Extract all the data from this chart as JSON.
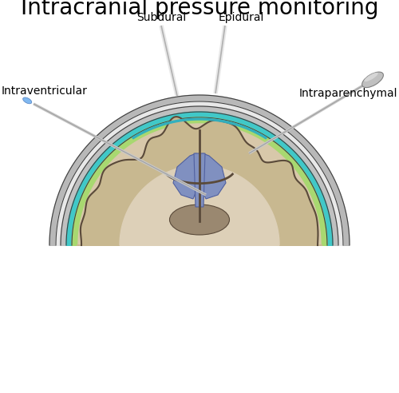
{
  "title": "Intracranial pressure monitoring",
  "title_fontsize": 20,
  "background_color": "#ffffff",
  "labels": {
    "subdural": "Subdural",
    "epidural": "Epidural",
    "intraventricular": "Intraventricular",
    "intraparenchymal": "Intraparenchymal"
  },
  "colors": {
    "skull_outer": "#b8b8b8",
    "skull_mid": "#e8e8e8",
    "dura": "#c0c0c0",
    "csf_cyan": "#40c8c8",
    "csf_green": "#a8d870",
    "brain_fill": "#d8c8aa",
    "brain_cortex": "#c8b890",
    "brain_outline": "#5a4a3a",
    "ventricle": "#8090c0",
    "subdural_pool": "#30b0c0",
    "probe_light": "#e0e0e0",
    "probe_mid": "#c0c0c0",
    "probe_dark": "#909090",
    "probe_blue": "#80b0e8",
    "outline": "#404040"
  }
}
